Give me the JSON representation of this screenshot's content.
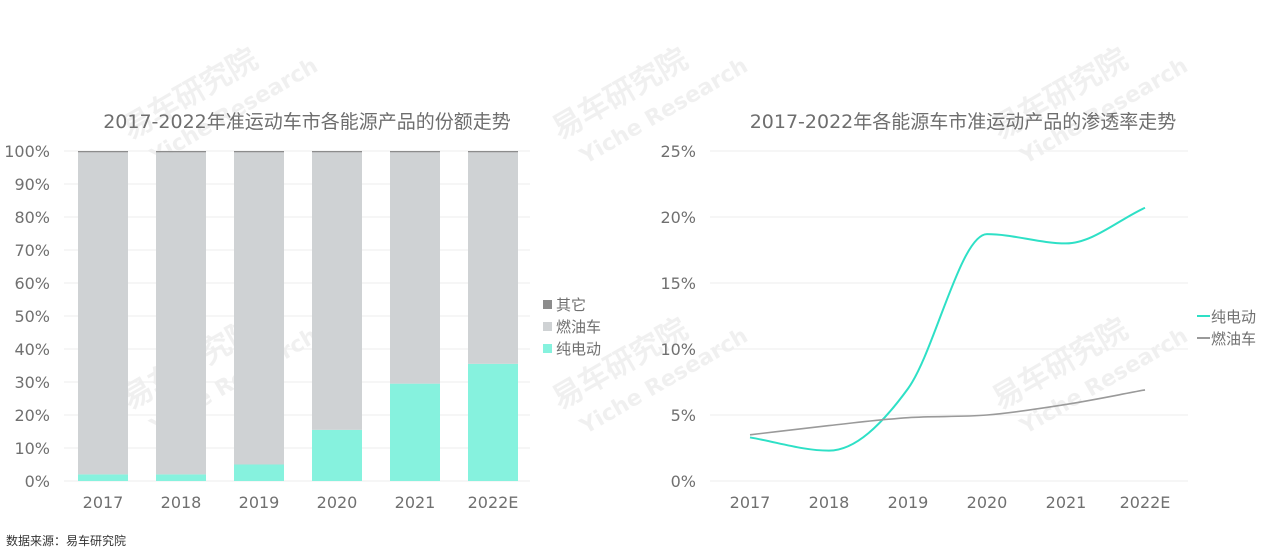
{
  "colors": {
    "other": "#8c8c8c",
    "fuel": "#cfd2d4",
    "ev": "#86f2de",
    "ev_line": "#2ee0c6",
    "fuel_line": "#9a9a9a"
  },
  "watermark": {
    "cn": "易车研究院",
    "en": "Yiche Research"
  },
  "source": "数据来源：易车研究院",
  "chart_data": [
    {
      "type": "bar",
      "stacked": true,
      "title": "2017-2022年准运动车市各能源产品的份额走势",
      "categories": [
        "2017",
        "2018",
        "2019",
        "2020",
        "2021",
        "2022E"
      ],
      "series": [
        {
          "name": "纯电动",
          "values": [
            2,
            2,
            5,
            15.5,
            29.5,
            35.5
          ]
        },
        {
          "name": "燃油车",
          "values": [
            97.6,
            97.6,
            94.6,
            84.1,
            70.1,
            64.1
          ]
        },
        {
          "name": "其它",
          "values": [
            0.4,
            0.4,
            0.4,
            0.4,
            0.4,
            0.4
          ]
        }
      ],
      "yticks": [
        "0%",
        "10%",
        "20%",
        "30%",
        "40%",
        "50%",
        "60%",
        "70%",
        "80%",
        "90%",
        "100%"
      ],
      "ylim": [
        0,
        100
      ],
      "legend": [
        "其它",
        "燃油车",
        "纯电动"
      ],
      "legend_position": "right"
    },
    {
      "type": "line",
      "title": "2017-2022年各能源车市准运动产品的渗透率走势",
      "categories": [
        "2017",
        "2018",
        "2019",
        "2020",
        "2021",
        "2022E"
      ],
      "series": [
        {
          "name": "纯电动",
          "values": [
            3.3,
            2.3,
            7.0,
            18.7,
            18.0,
            20.7
          ]
        },
        {
          "name": "燃油车",
          "values": [
            3.5,
            4.2,
            4.8,
            5.0,
            5.8,
            6.9
          ]
        }
      ],
      "yticks": [
        "0%",
        "5%",
        "10%",
        "15%",
        "20%",
        "25%"
      ],
      "ylim": [
        0,
        25
      ],
      "legend": [
        "纯电动",
        "燃油车"
      ],
      "legend_position": "right"
    }
  ]
}
